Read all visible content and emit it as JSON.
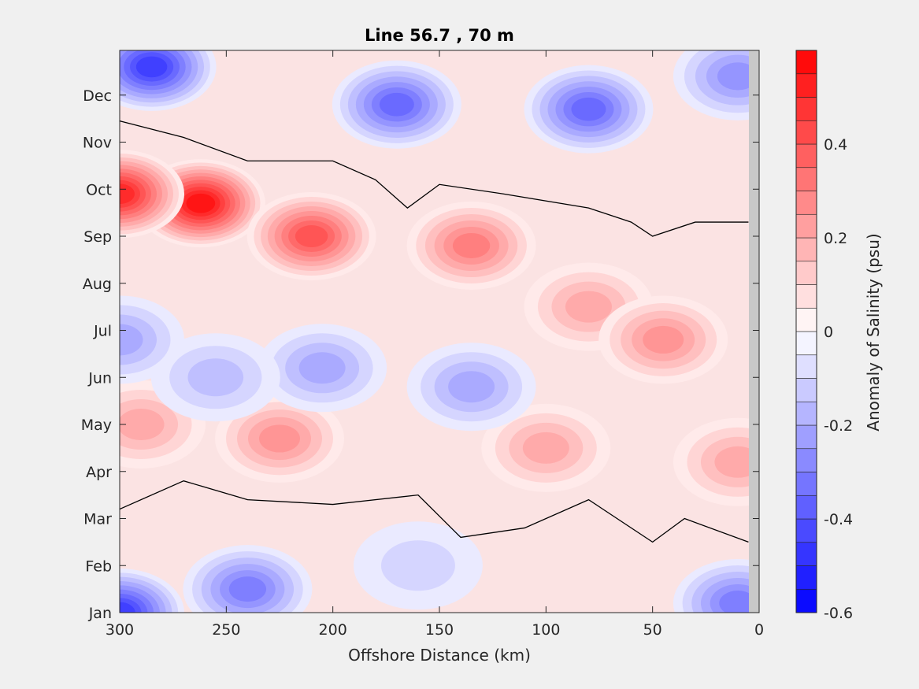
{
  "chart_data": {
    "type": "heatmap",
    "subtype": "filled-contour",
    "title": "Line 56.7 , 70 m",
    "xlabel": "Offshore Distance (km)",
    "xlim": [
      300,
      0
    ],
    "x_ticks": [
      "300",
      "250",
      "200",
      "150",
      "100",
      "50",
      "0"
    ],
    "x_tick_values": [
      300,
      250,
      200,
      150,
      100,
      50,
      0
    ],
    "ylabel": "",
    "y_ticks": [
      "Jan",
      "Feb",
      "Mar",
      "Apr",
      "May",
      "Jun",
      "Jul",
      "Aug",
      "Sep",
      "Oct",
      "Nov",
      "Dec"
    ],
    "colorbar": {
      "label": "Anomaly of Salinity (psu)",
      "range": [
        -0.6,
        0.6
      ],
      "step": 0.05,
      "ticks": [
        "-0.6",
        "-0.4",
        "-0.2",
        "0",
        "0.2",
        "0.4"
      ],
      "tick_values": [
        -0.6,
        -0.4,
        -0.2,
        0,
        0.2,
        0.4
      ],
      "negative_color": "#0000ff",
      "zero_color": "#ffffff",
      "positive_color": "#ff0000"
    },
    "contour_line_level": 0,
    "contour_line_color": "#000000",
    "no_data_color": "#c8c8c8",
    "grid": false,
    "features": [
      {
        "month": 9.7,
        "km": 262,
        "anomaly": 0.55
      },
      {
        "month": 9.9,
        "km": 300,
        "anomaly": 0.5
      },
      {
        "month": 9.0,
        "km": 210,
        "anomaly": 0.4
      },
      {
        "month": 8.8,
        "km": 135,
        "anomaly": 0.3
      },
      {
        "month": 7.5,
        "km": 80,
        "anomaly": 0.22
      },
      {
        "month": 6.8,
        "km": 45,
        "anomaly": 0.25
      },
      {
        "month": 4.7,
        "km": 225,
        "anomaly": 0.25
      },
      {
        "month": 4.5,
        "km": 100,
        "anomaly": 0.2
      },
      {
        "month": 4.2,
        "km": 10,
        "anomaly": 0.2
      },
      {
        "month": 5.0,
        "km": 290,
        "anomaly": 0.2
      },
      {
        "month": 5.8,
        "km": 135,
        "anomaly": -0.22
      },
      {
        "month": 6.2,
        "km": 205,
        "anomaly": -0.2
      },
      {
        "month": 6.0,
        "km": 255,
        "anomaly": -0.15
      },
      {
        "month": 6.8,
        "km": 300,
        "anomaly": -0.2
      },
      {
        "month": 1.0,
        "km": 300,
        "anomaly": -0.45
      },
      {
        "month": 1.5,
        "km": 240,
        "anomaly": -0.3
      },
      {
        "month": 1.2,
        "km": 10,
        "anomaly": -0.3
      },
      {
        "month": 2.0,
        "km": 160,
        "anomaly": -0.1
      },
      {
        "month": 12.6,
        "km": 285,
        "anomaly": -0.45
      },
      {
        "month": 11.7,
        "km": 80,
        "anomaly": -0.35
      },
      {
        "month": 11.8,
        "km": 170,
        "anomaly": -0.35
      },
      {
        "month": 12.4,
        "km": 10,
        "anomaly": -0.25
      }
    ]
  }
}
